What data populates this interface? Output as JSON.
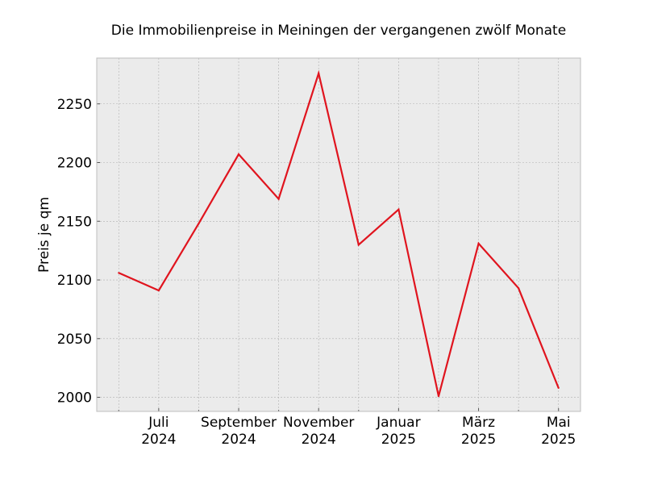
{
  "chart_data": {
    "type": "line",
    "title": "Die Immobilienpreise in Meiningen der vergangenen zwölf Monate",
    "xlabel": "",
    "ylabel": "Preis je qm",
    "x": [
      "2024-06",
      "2024-07",
      "2024-08",
      "2024-09",
      "2024-10",
      "2024-11",
      "2024-12",
      "2025-01",
      "2025-02",
      "2025-03",
      "2025-04",
      "2025-05"
    ],
    "x_tick_labels": [
      {
        "x": "2024-07",
        "line1": "Juli",
        "line2": "2024"
      },
      {
        "x": "2024-09",
        "line1": "September",
        "line2": "2024"
      },
      {
        "x": "2024-11",
        "line1": "November",
        "line2": "2024"
      },
      {
        "x": "2025-01",
        "line1": "Januar",
        "line2": "2025"
      },
      {
        "x": "2025-03",
        "line1": "März",
        "line2": "2025"
      },
      {
        "x": "2025-05",
        "line1": "Mai",
        "line2": "2025"
      }
    ],
    "y_ticks": [
      2000,
      2050,
      2100,
      2150,
      2200,
      2250
    ],
    "ylim": [
      1988,
      2289
    ],
    "grid": true,
    "series": [
      {
        "values": [
          2106,
          2091,
          2148,
          2207,
          2169,
          2276,
          2130,
          2160,
          2001,
          2131,
          2093,
          2008
        ],
        "color": "#e0141e"
      }
    ],
    "colors": {
      "plot_background": "#ebebeb",
      "grid": "#b0b0b0",
      "frame": "#bcbcbc"
    }
  }
}
